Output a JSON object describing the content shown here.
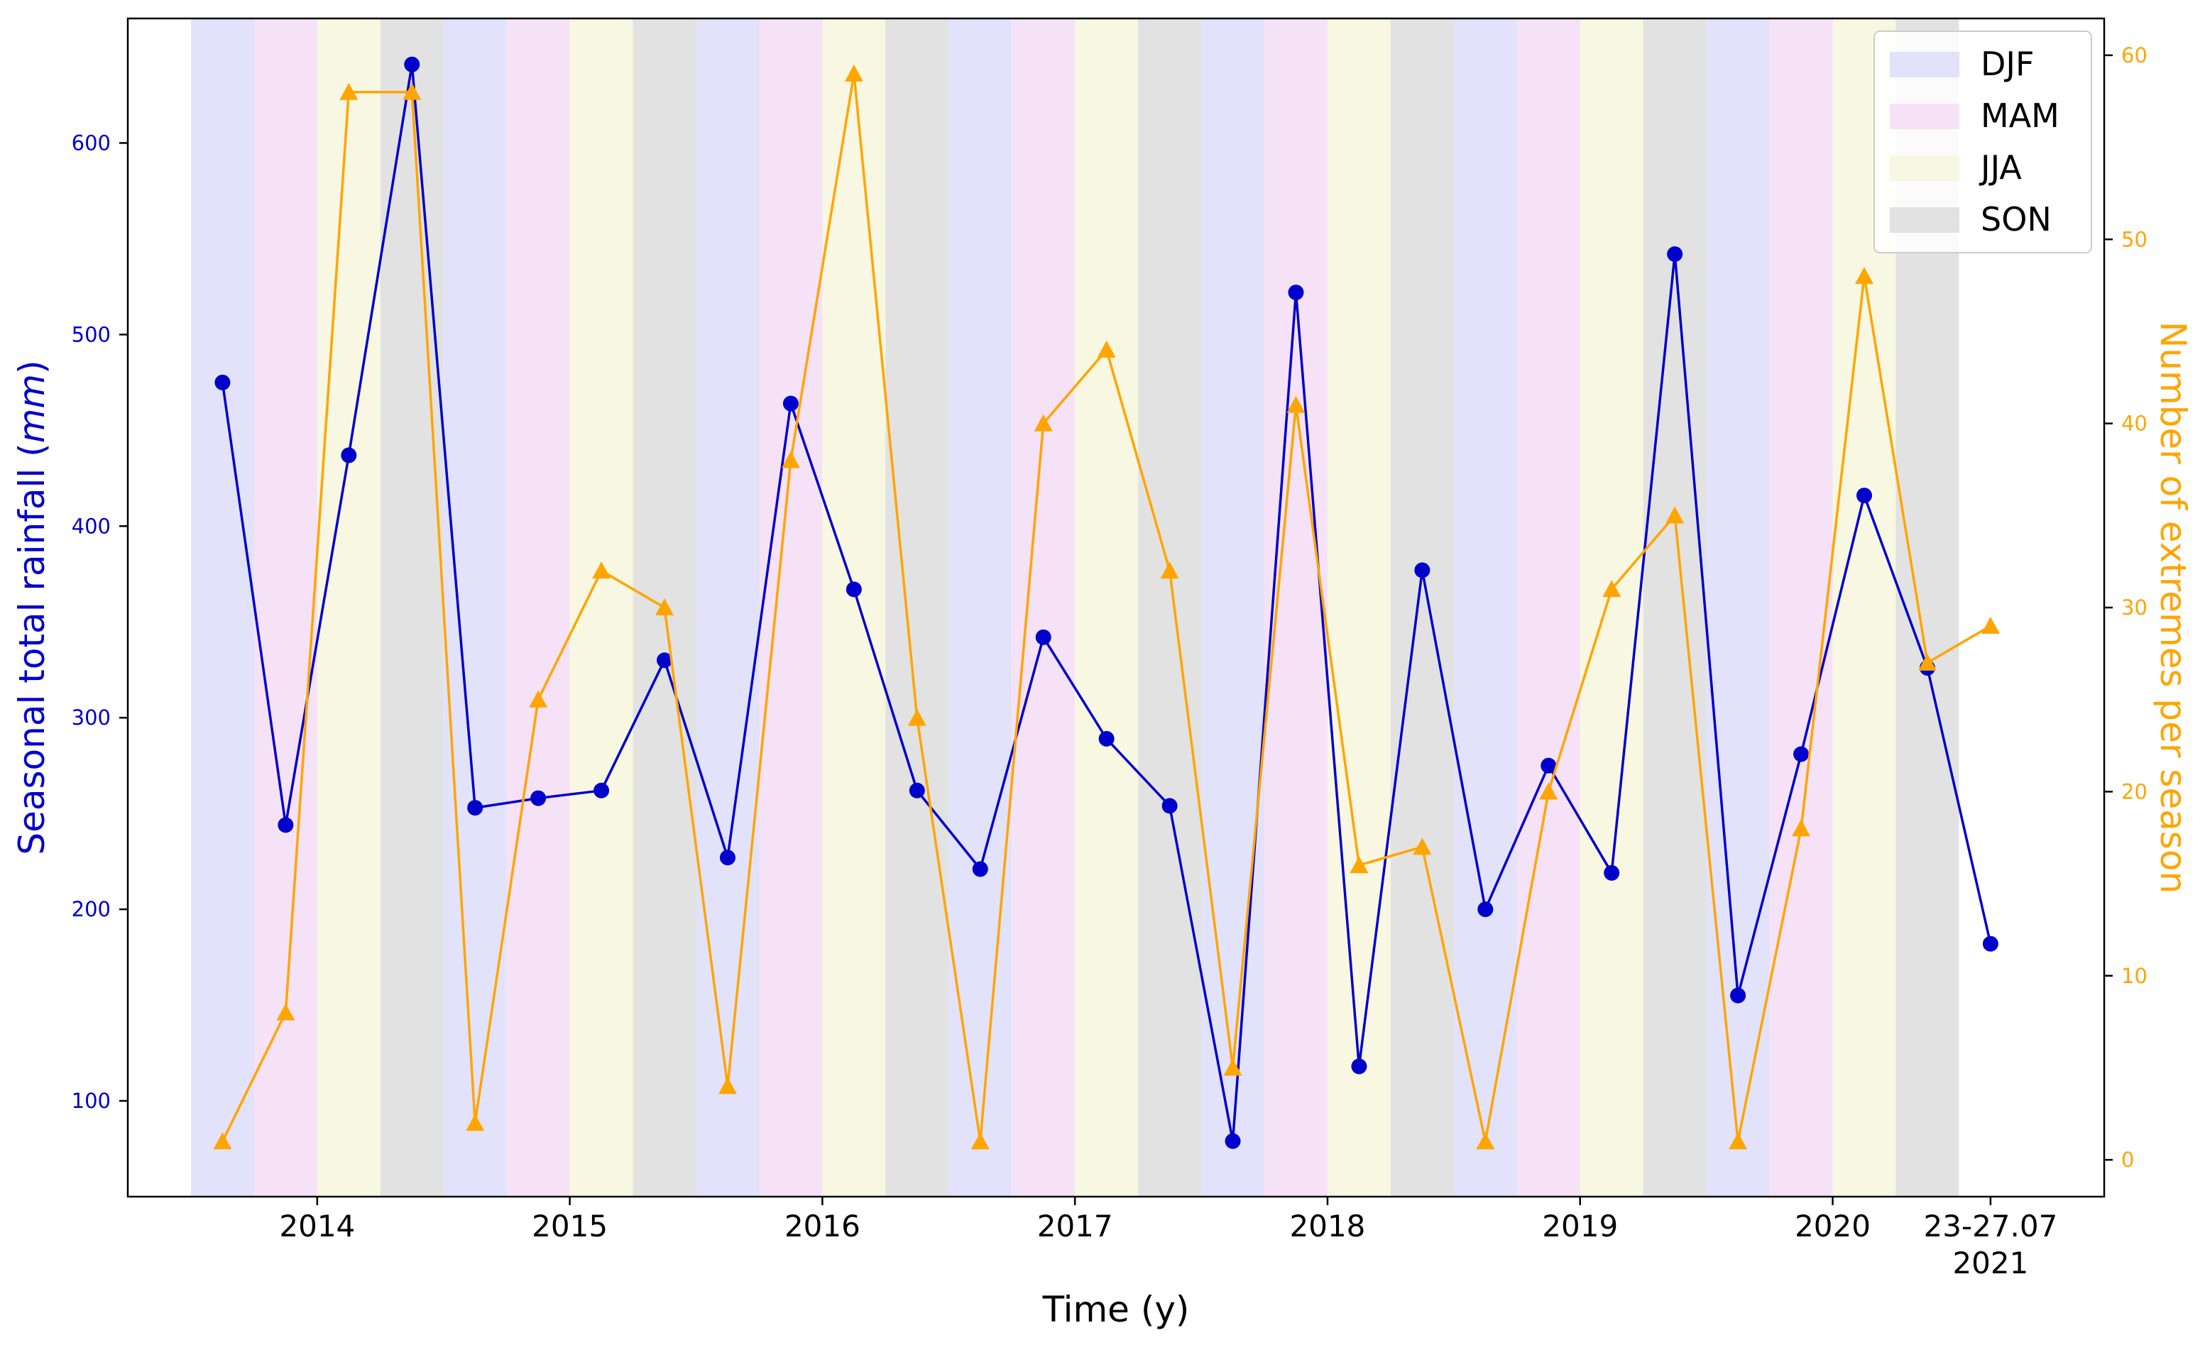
{
  "chart_data": {
    "type": "line",
    "title": "",
    "xlabel": "Time (y)",
    "ylabel_left": "Seasonal total rainfall",
    "ylabel_left_unit": "mm",
    "ylabel_right": "Number of extremes per season",
    "ylim_left": [
      50,
      665
    ],
    "ylim_right": [
      -2,
      62
    ],
    "yticks_left": [
      100,
      200,
      300,
      400,
      500,
      600
    ],
    "yticks_right": [
      0,
      10,
      20,
      30,
      40,
      50,
      60
    ],
    "x_index_range": [
      -1.5,
      29.8
    ],
    "x_tick_labels": [
      {
        "index": 1.5,
        "label": "2014"
      },
      {
        "index": 5.5,
        "label": "2015"
      },
      {
        "index": 9.5,
        "label": "2016"
      },
      {
        "index": 13.5,
        "label": "2017"
      },
      {
        "index": 17.5,
        "label": "2018"
      },
      {
        "index": 21.5,
        "label": "2019"
      },
      {
        "index": 25.5,
        "label": "2020"
      },
      {
        "index": 28,
        "label": "23-27.07",
        "label2": "2021"
      }
    ],
    "season_sequence": [
      "DJF",
      "MAM",
      "JJA",
      "SON",
      "DJF",
      "MAM",
      "JJA",
      "SON",
      "DJF",
      "MAM",
      "JJA",
      "SON",
      "DJF",
      "MAM",
      "JJA",
      "SON",
      "DJF",
      "MAM",
      "JJA",
      "SON",
      "DJF",
      "MAM",
      "JJA",
      "SON",
      "DJF",
      "MAM",
      "JJA",
      "SON"
    ],
    "legend": [
      {
        "label": "DJF",
        "color": "#e2e2fb"
      },
      {
        "label": "MAM",
        "color": "#f6e2f6"
      },
      {
        "label": "JJA",
        "color": "#f7f7e2"
      },
      {
        "label": "SON",
        "color": "#e2e2e2"
      }
    ],
    "series": [
      {
        "name": "Seasonal total rainfall",
        "axis": "left",
        "color": "#0000cc",
        "marker": "circle",
        "values": [
          475,
          244,
          437,
          641,
          253,
          258,
          262,
          330,
          227,
          464,
          367,
          262,
          221,
          342,
          289,
          254,
          79,
          522,
          118,
          377,
          200,
          275,
          219,
          542,
          155,
          281,
          416,
          326,
          182
        ]
      },
      {
        "name": "Number of extremes per season",
        "axis": "right",
        "color": "#ffa500",
        "marker": "triangle",
        "values": [
          1,
          8,
          58,
          58,
          2,
          25,
          32,
          30,
          4,
          38,
          59,
          24,
          1,
          40,
          44,
          32,
          5,
          41,
          16,
          17,
          1,
          20,
          31,
          35,
          1,
          18,
          48,
          27,
          29
        ]
      }
    ]
  }
}
